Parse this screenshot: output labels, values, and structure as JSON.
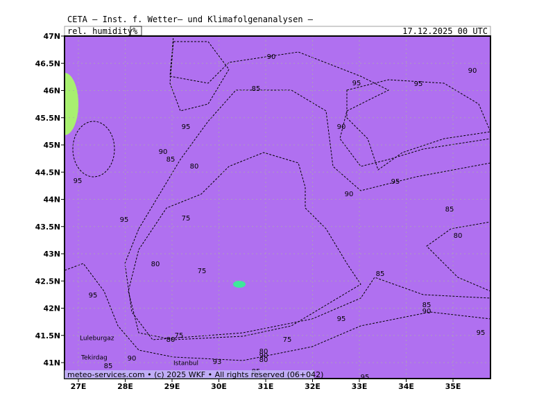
{
  "header": {
    "title": "CETA — Inst. f. Wetter— und Klimafolgenanalysen —",
    "field": "rel. humidity",
    "unit": "%",
    "valid_time": "17.12.2025 00 UTC"
  },
  "axes": {
    "lat_labels": [
      "47N",
      "46.5N",
      "46N",
      "45.5N",
      "45N",
      "44.5N",
      "44N",
      "43.5N",
      "43N",
      "42.5N",
      "42N",
      "41.5N",
      "41N"
    ],
    "lon_labels": [
      "27E",
      "28E",
      "29E",
      "30E",
      "31E",
      "32E",
      "33E",
      "34E",
      "35E"
    ]
  },
  "contour_labels": [
    90,
    85,
    95,
    95,
    90,
    95,
    90,
    90,
    85,
    80,
    95,
    95,
    90,
    85,
    95,
    75,
    80,
    80,
    75,
    85,
    95,
    85,
    90,
    95,
    95,
    75,
    80,
    75,
    90,
    85,
    80,
    90,
    80,
    93,
    85,
    95
  ],
  "places": [
    "Luleburgaz",
    "Tekirdag",
    "Istanbul"
  ],
  "footer": "meteo-services.com • (c) 2025 WKF • All rights reserved (06+042)"
}
